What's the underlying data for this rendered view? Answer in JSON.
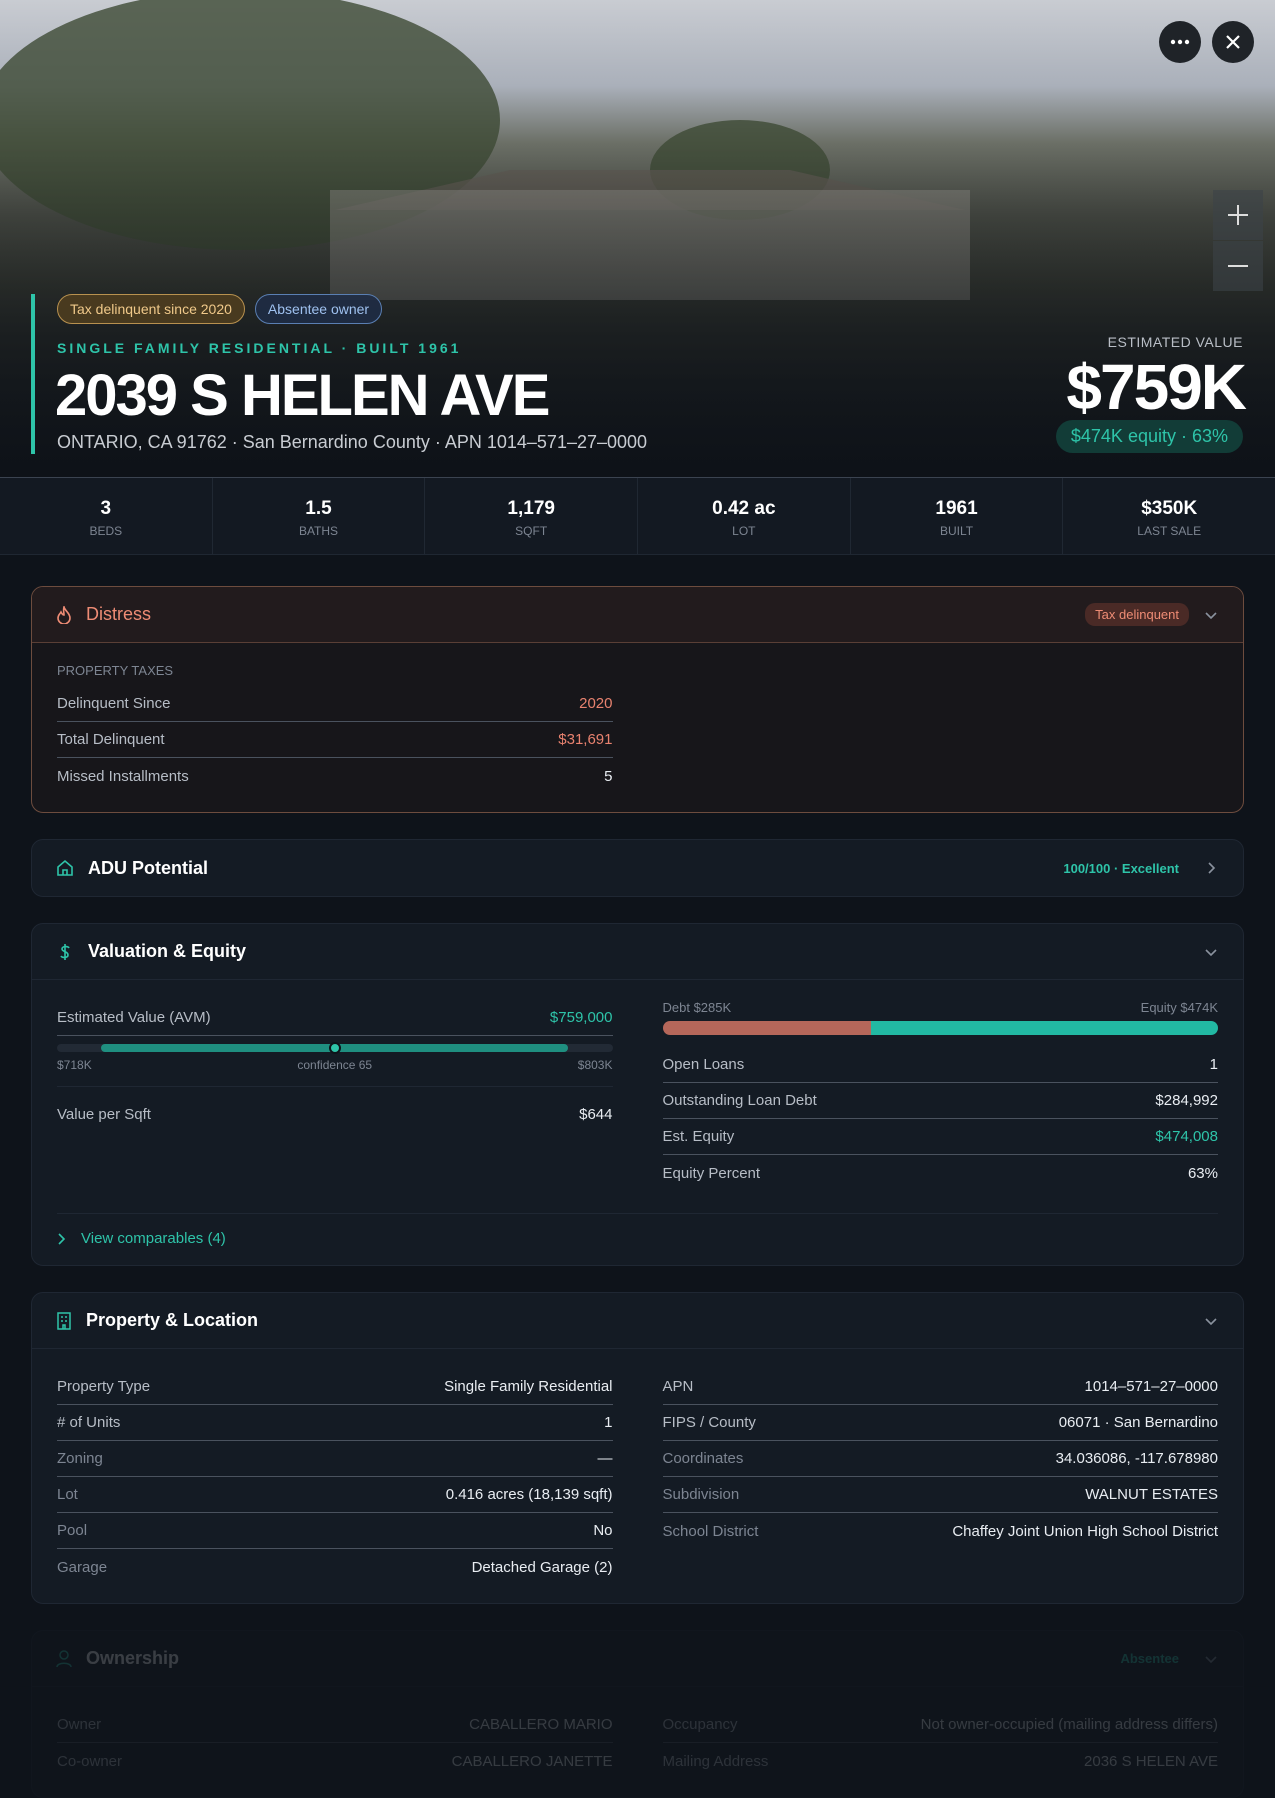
{
  "header": {
    "badges": [
      "Tax delinquent since 2020",
      "Absentee owner"
    ],
    "subtitle": "SINGLE FAMILY RESIDENTIAL · BUILT 1961",
    "address": "2039 S HELEN AVE",
    "location": "ONTARIO, CA 91762 · San Bernardino County · APN 1014–571–27–0000",
    "estimate_label": "ESTIMATED VALUE",
    "estimate": "$759K",
    "equity_pill": "$474K equity · 63%"
  },
  "stats": [
    {
      "value": "3",
      "label": "BEDS"
    },
    {
      "value": "1.5",
      "label": "BATHS"
    },
    {
      "value": "1,179",
      "label": "SQFT"
    },
    {
      "value": "0.42 ac",
      "label": "LOT"
    },
    {
      "value": "1961",
      "label": "BUILT"
    },
    {
      "value": "$350K",
      "label": "LAST SALE"
    }
  ],
  "distress": {
    "title": "Distress",
    "badge": "Tax delinquent",
    "section": "PROPERTY TAXES",
    "rows": [
      {
        "label": "Delinquent Since",
        "value": "2020",
        "color": "#e8826f"
      },
      {
        "label": "Total Delinquent",
        "value": "$31,691",
        "color": "#e8826f"
      },
      {
        "label": "Missed Installments",
        "value": "5"
      }
    ]
  },
  "adu": {
    "title": "ADU Potential",
    "score": "100/100 · Excellent"
  },
  "valuation": {
    "title": "Valuation & Equity",
    "avm_label": "Estimated Value (AVM)",
    "avm_value": "$759,000",
    "range_low": "$718K",
    "confidence": "confidence 65",
    "range_high": "$803K",
    "per_sqft": {
      "label": "Value per Sqft",
      "value": "$644"
    },
    "debt_label": "Debt $285K",
    "equity_label": "Equity $474K",
    "equity_bar": {
      "debt": 285,
      "equity": 474
    },
    "rows": [
      {
        "label": "Open Loans",
        "value": "1"
      },
      {
        "label": "Outstanding Loan Debt",
        "value": "$284,992"
      },
      {
        "label": "Est. Equity",
        "value": "$474,008",
        "color": "#2ec4a9"
      },
      {
        "label": "Equity Percent",
        "value": "63%"
      }
    ],
    "link": "View comparables (4)"
  },
  "property": {
    "title": "Property & Location",
    "left": [
      {
        "label": "Property Type",
        "value": "Single Family Residential"
      },
      {
        "label": "# of Units",
        "value": "1"
      },
      {
        "label": "Zoning",
        "value": "—"
      },
      {
        "label": "Lot",
        "value": "0.416 acres (18,139 sqft)"
      },
      {
        "label": "Pool",
        "value": "No"
      },
      {
        "label": "Garage",
        "value": "Detached Garage (2)"
      }
    ],
    "right": [
      {
        "label": "APN",
        "value": "1014–571–27–0000"
      },
      {
        "label": "FIPS / County",
        "value": "06071 · San Bernardino"
      },
      {
        "label": "Coordinates",
        "value": "34.036086, -117.678980"
      },
      {
        "label": "Subdivision",
        "value": "WALNUT ESTATES"
      },
      {
        "label": "School District",
        "value": "Chaffey Joint Union High School District"
      }
    ]
  },
  "ownership": {
    "title": "Ownership",
    "badge": "Absentee",
    "left": [
      {
        "label": "Owner",
        "value": "CABALLERO MARIO"
      },
      {
        "label": "Co-owner",
        "value": "CABALLERO JANETTE"
      }
    ],
    "right": [
      {
        "label": "Occupancy",
        "value": "Not owner-occupied (mailing address differs)"
      },
      {
        "label": "Mailing Address",
        "value": "2036 S HELEN AVE"
      }
    ]
  }
}
